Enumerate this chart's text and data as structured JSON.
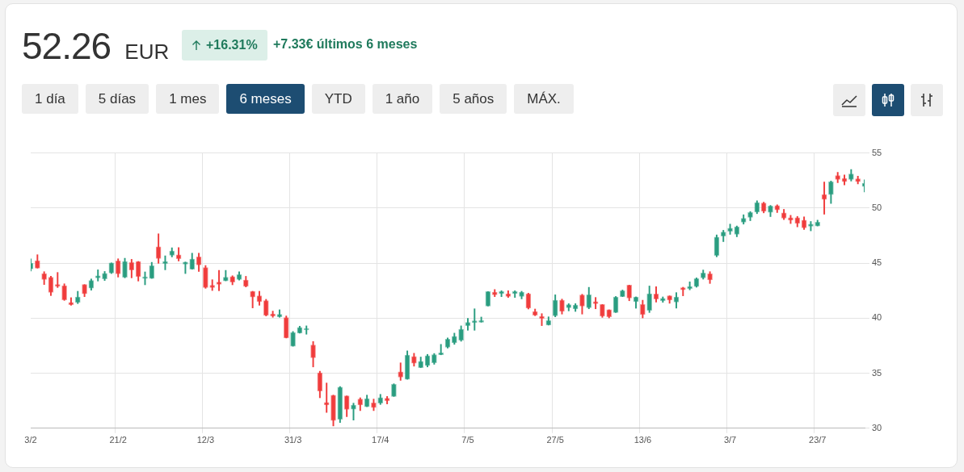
{
  "chart_data": {
    "type": "candlestick",
    "title": "52.26 EUR",
    "subtitle": "+16.31%",
    "annotations": [
      "+7.33€ últimos 6 meses",
      "1 día",
      "5 días",
      "1 mes",
      "6 meses",
      "YTD",
      "1 año",
      "5 años",
      "MÁX."
    ],
    "categories": [
      "3/2",
      null,
      null,
      null,
      null,
      null,
      null,
      null,
      null,
      null,
      null,
      null,
      null,
      "21/2",
      null,
      null,
      null,
      null,
      null,
      null,
      null,
      null,
      null,
      null,
      null,
      null,
      "12/3",
      null,
      null,
      null,
      null,
      null,
      null,
      null,
      null,
      null,
      null,
      null,
      null,
      "31/3",
      null,
      null,
      null,
      null,
      null,
      null,
      null,
      null,
      null,
      null,
      null,
      null,
      "17/4",
      null,
      null,
      null,
      null,
      null,
      null,
      null,
      null,
      null,
      null,
      null,
      null,
      "7/5",
      null,
      null,
      null,
      null,
      null,
      null,
      null,
      null,
      null,
      null,
      null,
      null,
      "27/5",
      null,
      null,
      null,
      null,
      null,
      null,
      null,
      null,
      null,
      null,
      null,
      null,
      "13/6",
      null,
      null,
      null,
      null,
      null,
      null,
      null,
      null,
      null,
      null,
      null,
      null,
      "3/7",
      null,
      null,
      null,
      null,
      null,
      null,
      null,
      null,
      null,
      null,
      null,
      null,
      "23/7",
      null,
      null,
      null,
      null,
      null,
      null,
      null
    ],
    "ohlc": [
      [
        44.46,
        45.39,
        44.27,
        45.0
      ],
      [
        45.22,
        45.76,
        44.54,
        44.54
      ],
      [
        44.05,
        44.22,
        43.05,
        43.51
      ],
      [
        43.71,
        43.81,
        42.05,
        42.34
      ],
      [
        43.05,
        44.15,
        42.78,
        42.88
      ],
      [
        42.95,
        43.12,
        41.61,
        41.66
      ],
      [
        41.42,
        41.86,
        41.17,
        41.22
      ],
      [
        41.42,
        42.44,
        41.32,
        41.93
      ],
      [
        43.05,
        43.05,
        41.95,
        42.2
      ],
      [
        42.73,
        43.56,
        42.54,
        43.42
      ],
      [
        43.66,
        44.39,
        43.37,
        43.85
      ],
      [
        43.56,
        44.24,
        43.42,
        44.07
      ],
      [
        44.1,
        45.02,
        44.05,
        45.02
      ],
      [
        45.2,
        45.39,
        43.73,
        44.03
      ],
      [
        43.71,
        45.44,
        43.66,
        45.15
      ],
      [
        45.05,
        45.34,
        43.66,
        44.37
      ],
      [
        45.15,
        45.15,
        43.37,
        43.76
      ],
      [
        43.61,
        44.2,
        43.03,
        43.76
      ],
      [
        43.61,
        45.07,
        43.61,
        44.76
      ],
      [
        46.49,
        47.66,
        44.98,
        45.41
      ],
      [
        44.95,
        45.66,
        44.39,
        45.15
      ],
      [
        45.71,
        46.39,
        45.56,
        46.1
      ],
      [
        45.76,
        46.41,
        45.19,
        45.39
      ],
      [
        44.9,
        45.1,
        44.05,
        45.1
      ],
      [
        44.44,
        45.9,
        44.44,
        45.37
      ],
      [
        45.56,
        45.9,
        44.24,
        44.83
      ],
      [
        44.59,
        44.78,
        42.71,
        42.78
      ],
      [
        42.98,
        43.49,
        42.51,
        42.78
      ],
      [
        43.27,
        44.34,
        42.49,
        43.07
      ],
      [
        43.39,
        44.34,
        43.39,
        43.71
      ],
      [
        43.78,
        43.85,
        43.03,
        43.27
      ],
      [
        43.51,
        44.22,
        43.46,
        43.95
      ],
      [
        43.46,
        43.8,
        42.83,
        42.88
      ],
      [
        42.44,
        42.44,
        40.93,
        41.91
      ],
      [
        42.03,
        42.44,
        41.17,
        41.49
      ],
      [
        41.59,
        41.71,
        40.2,
        40.25
      ],
      [
        40.39,
        40.64,
        40.08,
        40.2
      ],
      [
        40.13,
        40.76,
        40.08,
        40.35
      ],
      [
        40.05,
        40.2,
        38.2,
        38.2
      ],
      [
        37.45,
        38.79,
        37.45,
        38.69
      ],
      [
        38.64,
        39.27,
        38.64,
        39.15
      ],
      [
        38.93,
        39.3,
        38.54,
        39.07
      ],
      [
        37.57,
        37.88,
        35.57,
        36.4
      ],
      [
        35.03,
        35.18,
        32.77,
        33.38
      ],
      [
        32.35,
        34.11,
        31.43,
        32.11
      ],
      [
        33.01,
        33.01,
        30.21,
        30.7
      ],
      [
        30.82,
        33.79,
        30.53,
        33.74
      ],
      [
        32.94,
        32.94,
        31.06,
        31.72
      ],
      [
        31.74,
        32.28,
        30.75,
        32.11
      ],
      [
        32.65,
        32.77,
        31.6,
        32.11
      ],
      [
        31.96,
        33.01,
        31.96,
        32.69
      ],
      [
        32.3,
        32.65,
        31.6,
        31.87
      ],
      [
        32.28,
        33.08,
        32.16,
        32.79
      ],
      [
        32.72,
        32.89,
        32.21,
        32.5
      ],
      [
        32.89,
        34.04,
        32.89,
        33.99
      ],
      [
        35.13,
        35.94,
        34.35,
        34.64
      ],
      [
        34.45,
        37.03,
        34.45,
        36.64
      ],
      [
        36.52,
        36.81,
        35.64,
        35.91
      ],
      [
        35.5,
        36.47,
        35.5,
        36.08
      ],
      [
        35.69,
        36.71,
        35.57,
        36.59
      ],
      [
        35.94,
        36.79,
        35.81,
        36.69
      ],
      [
        36.67,
        37.62,
        36.67,
        36.84
      ],
      [
        37.35,
        38.2,
        37.28,
        38.1
      ],
      [
        37.76,
        38.64,
        37.62,
        38.35
      ],
      [
        38.0,
        39.3,
        37.9,
        39.0
      ],
      [
        39.32,
        39.98,
        38.9,
        39.61
      ],
      [
        39.59,
        40.85,
        38.9,
        39.76
      ],
      [
        39.63,
        40.1,
        39.63,
        39.78
      ],
      [
        41.1,
        42.41,
        41.1,
        42.41
      ],
      [
        42.36,
        42.6,
        41.95,
        42.12
      ],
      [
        42.22,
        42.49,
        41.95,
        42.41
      ],
      [
        42.22,
        42.49,
        41.88,
        41.97
      ],
      [
        42.22,
        42.49,
        41.88,
        42.41
      ],
      [
        41.97,
        42.44,
        41.75,
        42.36
      ],
      [
        42.22,
        42.27,
        40.83,
        40.9
      ],
      [
        40.61,
        40.83,
        40.22,
        40.27
      ],
      [
        40.17,
        40.41,
        39.32,
        39.98
      ],
      [
        39.37,
        40.12,
        39.37,
        39.78
      ],
      [
        40.22,
        42.12,
        40.12,
        41.63
      ],
      [
        41.63,
        41.73,
        40.37,
        40.61
      ],
      [
        40.95,
        41.32,
        40.66,
        41.22
      ],
      [
        40.83,
        41.32,
        40.61,
        41.19
      ],
      [
        42.1,
        42.17,
        40.37,
        41.1
      ],
      [
        40.95,
        42.8,
        40.85,
        42.12
      ],
      [
        41.51,
        41.88,
        40.85,
        41.32
      ],
      [
        41.24,
        41.24,
        40.07,
        40.17
      ],
      [
        40.76,
        40.76,
        40.02,
        40.12
      ],
      [
        40.51,
        41.97,
        40.51,
        41.93
      ],
      [
        41.95,
        42.56,
        41.95,
        42.49
      ],
      [
        43.0,
        43.0,
        41.58,
        41.83
      ],
      [
        41.49,
        41.93,
        40.9,
        41.93
      ],
      [
        41.24,
        41.63,
        40.02,
        40.32
      ],
      [
        40.71,
        42.92,
        40.51,
        42.22
      ],
      [
        42.19,
        42.85,
        41.46,
        41.73
      ],
      [
        41.58,
        41.93,
        41.44,
        41.8
      ],
      [
        42.03,
        42.03,
        41.35,
        41.64
      ],
      [
        41.45,
        42.32,
        40.91,
        41.93
      ],
      [
        42.76,
        42.81,
        42.03,
        42.57
      ],
      [
        42.69,
        43.3,
        42.57,
        42.88
      ],
      [
        42.86,
        43.66,
        42.81,
        43.59
      ],
      [
        43.66,
        44.37,
        43.54,
        44.1
      ],
      [
        44.03,
        44.22,
        43.15,
        43.47
      ],
      [
        45.69,
        47.56,
        45.57,
        47.37
      ],
      [
        47.44,
        47.98,
        46.95,
        47.83
      ],
      [
        47.88,
        48.54,
        47.61,
        48.17
      ],
      [
        47.61,
        48.37,
        47.39,
        48.29
      ],
      [
        48.71,
        49.39,
        48.54,
        49.07
      ],
      [
        49.15,
        49.68,
        48.85,
        49.59
      ],
      [
        49.63,
        50.66,
        49.49,
        50.49
      ],
      [
        50.46,
        50.54,
        49.56,
        49.71
      ],
      [
        49.61,
        50.24,
        49.22,
        50.19
      ],
      [
        50.22,
        50.29,
        49.59,
        49.83
      ],
      [
        49.56,
        49.88,
        48.95,
        49.07
      ],
      [
        49.12,
        49.34,
        48.59,
        48.9
      ],
      [
        49.12,
        49.24,
        48.29,
        48.61
      ],
      [
        48.9,
        49.2,
        48.05,
        48.2
      ],
      [
        48.34,
        48.78,
        47.93,
        48.54
      ],
      [
        48.37,
        48.9,
        48.37,
        48.71
      ],
      [
        51.22,
        52.36,
        49.44,
        50.78
      ],
      [
        51.22,
        52.46,
        50.41,
        52.39
      ],
      [
        52.95,
        53.25,
        52.3,
        52.6
      ],
      [
        52.7,
        53.0,
        52.1,
        52.4
      ],
      [
        52.6,
        53.5,
        52.45,
        53.1
      ],
      [
        52.65,
        52.9,
        52.2,
        52.4
      ],
      [
        51.95,
        52.56,
        51.46,
        52.26
      ]
    ],
    "colors": [
      "#2a9d80",
      "#f03c3c",
      "#f03c3c",
      "#f03c3c",
      "#f03c3c",
      "#f03c3c",
      "#f03c3c",
      "#2a9d80",
      "#f03c3c",
      "#2a9d80",
      "#2a9d80",
      "#2a9d80",
      "#2a9d80",
      "#f03c3c",
      "#2a9d80",
      "#f03c3c",
      "#f03c3c",
      "#2a9d80",
      "#2a9d80",
      "#f03c3c",
      "#2a9d80",
      "#2a9d80",
      "#f03c3c",
      "#2a9d80",
      "#2a9d80",
      "#f03c3c",
      "#f03c3c",
      "#f03c3c",
      "#f03c3c",
      "#2a9d80",
      "#f03c3c",
      "#2a9d80",
      "#f03c3c",
      "#f03c3c",
      "#f03c3c",
      "#f03c3c",
      "#f03c3c",
      "#2a9d80",
      "#f03c3c",
      "#2a9d80",
      "#2a9d80",
      "#2a9d80",
      "#f03c3c",
      "#f03c3c",
      "#f03c3c",
      "#f03c3c",
      "#2a9d80",
      "#f03c3c",
      "#2a9d80",
      "#f03c3c",
      "#2a9d80",
      "#f03c3c",
      "#2a9d80",
      "#f03c3c",
      "#2a9d80",
      "#f03c3c",
      "#2a9d80",
      "#f03c3c",
      "#2a9d80",
      "#2a9d80",
      "#2a9d80",
      "#2a9d80",
      "#2a9d80",
      "#2a9d80",
      "#2a9d80",
      "#2a9d80",
      "#2a9d80",
      "#2a9d80",
      "#2a9d80",
      "#f03c3c",
      "#2a9d80",
      "#f03c3c",
      "#2a9d80",
      "#2a9d80",
      "#f03c3c",
      "#f03c3c",
      "#f03c3c",
      "#2a9d80",
      "#2a9d80",
      "#f03c3c",
      "#2a9d80",
      "#2a9d80",
      "#f03c3c",
      "#2a9d80",
      "#f03c3c",
      "#f03c3c",
      "#f03c3c",
      "#2a9d80",
      "#2a9d80",
      "#f03c3c",
      "#2a9d80",
      "#f03c3c",
      "#2a9d80",
      "#f03c3c",
      "#2a9d80",
      "#f03c3c",
      "#2a9d80",
      "#f03c3c",
      "#2a9d80",
      "#2a9d80",
      "#2a9d80",
      "#f03c3c",
      "#2a9d80",
      "#2a9d80",
      "#2a9d80",
      "#2a9d80",
      "#2a9d80",
      "#2a9d80",
      "#2a9d80",
      "#f03c3c",
      "#2a9d80",
      "#f03c3c",
      "#f03c3c",
      "#f03c3c",
      "#f03c3c",
      "#f03c3c",
      "#2a9d80",
      "#2a9d80",
      "#f03c3c",
      "#2a9d80",
      "#f03c3c",
      "#f03c3c",
      "#2a9d80",
      "#f03c3c",
      "#2a9d80"
    ],
    "ylim": [
      30,
      55
    ],
    "yticks": [
      30,
      35,
      40,
      45,
      50,
      55
    ],
    "grid": true
  }
}
